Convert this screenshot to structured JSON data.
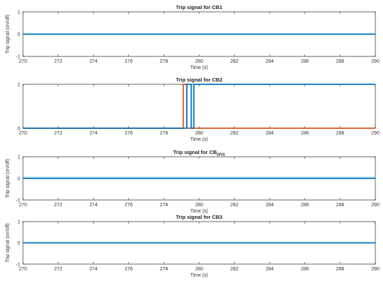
{
  "chart_data": [
    {
      "type": "line",
      "title": "Trip signal for CB1",
      "title_sub": "",
      "xlabel": "Time (s)",
      "ylabel": "Trip signal (on/off)",
      "xlim": [
        270,
        290
      ],
      "ylim": [
        -1,
        1
      ],
      "xticks": [
        "270",
        "272",
        "274",
        "276",
        "278",
        "280",
        "282",
        "284",
        "286",
        "288",
        "290"
      ],
      "yticks": [
        "-1",
        "0",
        "1"
      ],
      "grid": false,
      "series": [
        {
          "color": "#0072BD",
          "x": [
            270,
            290
          ],
          "y": [
            0,
            0
          ]
        }
      ]
    },
    {
      "type": "line",
      "title": "Trip signal for CB2",
      "title_sub": "",
      "xlabel": "Time (s)",
      "ylabel": "",
      "xlim": [
        270,
        290
      ],
      "ylim": [
        0,
        1
      ],
      "xticks": [
        "270",
        "272",
        "274",
        "276",
        "278",
        "280",
        "282",
        "284",
        "286",
        "288",
        "290"
      ],
      "yticks": [
        "0",
        "1"
      ],
      "grid": false,
      "series": [
        {
          "color": "#D95319",
          "x": [
            270,
            279.1,
            279.1,
            279.3,
            279.3,
            290
          ],
          "y": [
            0,
            0,
            1,
            1,
            0,
            0
          ]
        },
        {
          "color": "#0072BD",
          "x": [
            270,
            279.3,
            279.3,
            279.55,
            279.55,
            279.7,
            279.7,
            290
          ],
          "y": [
            0,
            0,
            1,
            1,
            0,
            0,
            1,
            1
          ]
        }
      ]
    },
    {
      "type": "line",
      "title": "Trip signal for CB",
      "title_sub": "DFIG",
      "xlabel": "Time (s)",
      "ylabel": "Trip signal (on/off)",
      "xlim": [
        270,
        290
      ],
      "ylim": [
        -1,
        1
      ],
      "xticks": [
        "270",
        "272",
        "274",
        "276",
        "278",
        "280",
        "282",
        "284",
        "286",
        "288",
        "290"
      ],
      "yticks": [
        "-1",
        "0",
        "1"
      ],
      "grid": false,
      "band_color": "#C9ECF0",
      "series": [
        {
          "color": "#0072BD",
          "x": [
            270,
            290
          ],
          "y": [
            0,
            0
          ]
        }
      ]
    },
    {
      "type": "line",
      "title": "Trip signal for CB3",
      "title_sub": "",
      "xlabel": "Time (s)",
      "ylabel": "Trip signal (on/off)",
      "xlim": [
        270,
        290
      ],
      "ylim": [
        -1,
        1
      ],
      "xticks": [
        "270",
        "272",
        "274",
        "276",
        "278",
        "280",
        "282",
        "284",
        "286",
        "288",
        "290"
      ],
      "yticks": [
        "-1",
        "0",
        "1"
      ],
      "grid": false,
      "series": [
        {
          "color": "#0072BD",
          "x": [
            270,
            290
          ],
          "y": [
            0,
            0
          ]
        }
      ]
    }
  ]
}
